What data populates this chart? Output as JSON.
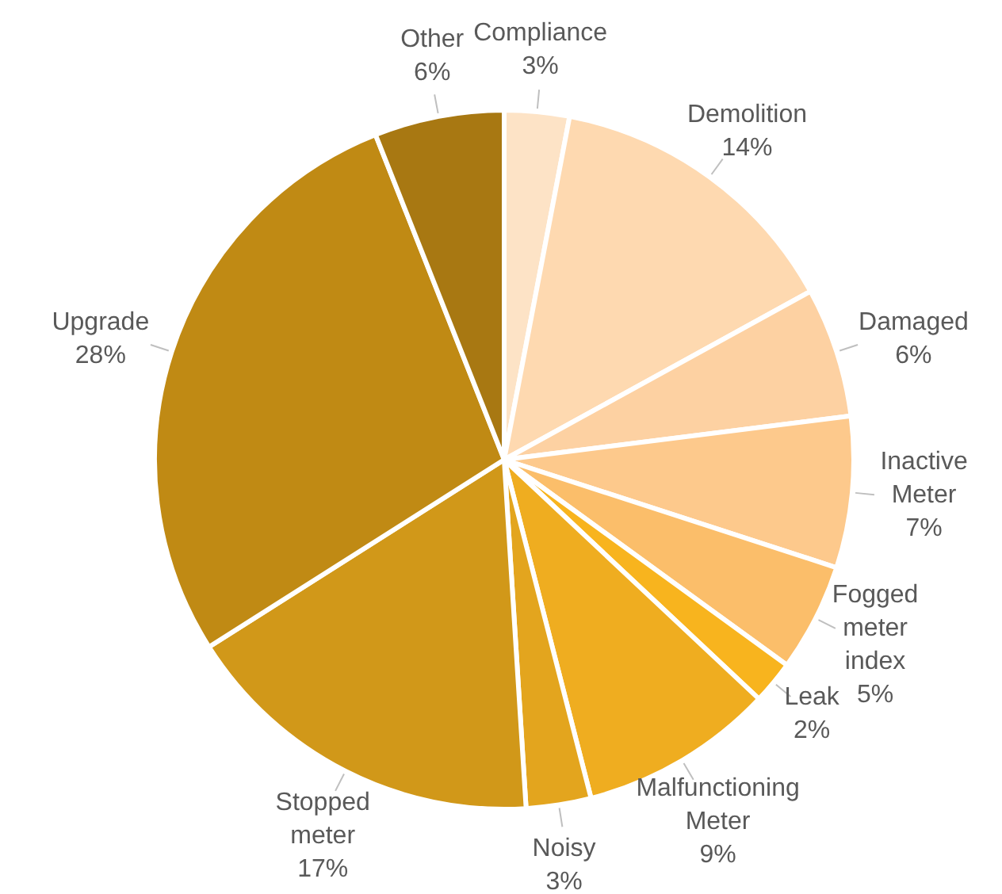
{
  "chart_data": {
    "type": "pie",
    "categories": [
      "Compliance",
      "Demolition",
      "Damaged",
      "Inactive Meter",
      "Fogged meter index",
      "Leak",
      "Malfunctioning Meter",
      "Noisy",
      "Stopped meter",
      "Upgrade",
      "Other"
    ],
    "values": [
      3,
      14,
      6,
      7,
      5,
      2,
      9,
      3,
      17,
      28,
      6
    ],
    "value_labels": [
      "3%",
      "14%",
      "6%",
      "7%",
      "5%",
      "2%",
      "9%",
      "3%",
      "17%",
      "28%",
      "6%"
    ],
    "colors": [
      "#fde3c6",
      "#fed9b0",
      "#fdd1a2",
      "#fdc98c",
      "#fbbe6a",
      "#f8b41e",
      "#efad20",
      "#e3a51e",
      "#d19819",
      "#c08a14",
      "#a87812"
    ],
    "legend": false
  }
}
